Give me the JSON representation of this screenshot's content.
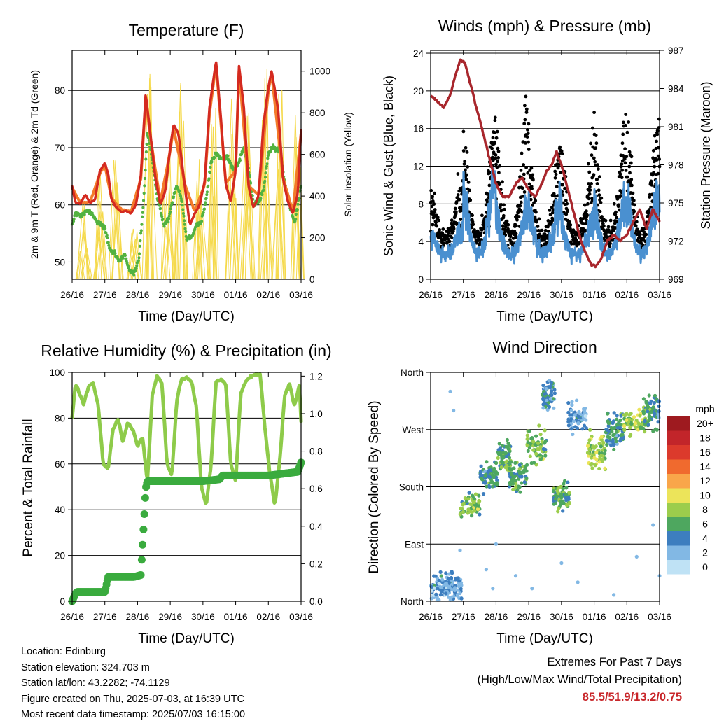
{
  "chart_data": [
    {
      "type": "line",
      "title": "Temperature (F)",
      "xlabel": "Time (Day/UTC)",
      "ylabel": "2m & 9m T (Red, Orange) & 2m Td (Green)",
      "ylabel_right": "Solar Insolation (Yellow)",
      "x_ticks": [
        "26/16",
        "27/16",
        "28/16",
        "29/16",
        "30/16",
        "01/16",
        "02/16",
        "03/16"
      ],
      "ylim": [
        47,
        87
      ],
      "y_ticks": [
        50,
        60,
        70,
        80
      ],
      "ylim_right": [
        0,
        1100
      ],
      "y_ticks_right": [
        0,
        200,
        400,
        600,
        800,
        1000
      ],
      "grid": "horizontal",
      "colors": {
        "t2m": "#d42a20",
        "t9m": "#f37b2a",
        "td2m": "#52b240",
        "solar": "#f5d94a"
      },
      "series": [
        {
          "key": "t2m",
          "x": [
            0,
            0.1,
            0.25,
            0.4,
            0.55,
            0.7,
            0.85,
            1.0,
            1.1,
            1.2,
            1.35,
            1.5,
            1.65,
            1.8,
            1.95,
            2.1,
            2.25,
            2.4,
            2.55,
            2.7,
            2.85,
            3.0,
            3.1,
            3.25,
            3.45,
            3.6,
            3.75,
            3.9,
            4.05,
            4.2,
            4.4,
            4.55,
            4.7,
            4.85,
            5.0,
            5.1,
            5.25,
            5.4,
            5.55,
            5.7,
            5.85,
            6.0,
            6.1,
            6.3,
            6.45,
            6.6,
            6.75,
            6.9,
            7.0
          ],
          "values": [
            63.2,
            60.5,
            60.2,
            61.8,
            60.3,
            61.0,
            66.0,
            67.3,
            65.5,
            61.0,
            59.5,
            58.8,
            59.0,
            58.5,
            60.0,
            65.0,
            79.5,
            72.0,
            64.5,
            60.0,
            62.5,
            70.0,
            74.0,
            72.5,
            63.0,
            56.5,
            58.5,
            60.0,
            64.0,
            77.0,
            85.2,
            75.0,
            63.5,
            60.5,
            66.0,
            84.5,
            77.0,
            63.0,
            59.5,
            61.5,
            74.0,
            80.5,
            83.5,
            76.5,
            64.5,
            60.5,
            58.5,
            62.0,
            73.0
          ]
        },
        {
          "key": "t9m",
          "x": [
            0,
            0.25,
            0.55,
            0.85,
            1.0,
            1.2,
            1.5,
            1.8,
            2.1,
            2.25,
            2.4,
            2.7,
            3.0,
            3.1,
            3.45,
            3.75,
            4.05,
            4.2,
            4.4,
            4.7,
            5.0,
            5.1,
            5.4,
            5.7,
            6.0,
            6.1,
            6.45,
            6.75,
            7.0
          ],
          "values": [
            63.0,
            60.4,
            60.5,
            65.5,
            66.8,
            61.2,
            59.2,
            58.8,
            64.5,
            78.5,
            71.5,
            60.5,
            69.5,
            73.5,
            63.5,
            58.8,
            63.5,
            76.0,
            84.5,
            63.8,
            66.0,
            83.8,
            63.3,
            61.7,
            80.0,
            83.0,
            64.7,
            58.8,
            72.5
          ]
        },
        {
          "key": "td2m",
          "x": [
            0,
            0.1,
            0.25,
            0.45,
            0.6,
            0.75,
            0.9,
            1.0,
            1.15,
            1.3,
            1.45,
            1.6,
            1.75,
            1.9,
            2.05,
            2.2,
            2.3,
            2.45,
            2.6,
            2.8,
            2.95,
            3.05,
            3.2,
            3.35,
            3.5,
            3.65,
            3.8,
            3.95,
            4.1,
            4.25,
            4.4,
            4.55,
            4.75,
            4.95,
            5.1,
            5.25,
            5.4,
            5.55,
            5.7,
            5.85,
            6.0,
            6.15,
            6.35,
            6.5,
            6.65,
            6.8,
            6.9,
            7.0
          ],
          "values": [
            56.5,
            58.5,
            58.0,
            59.0,
            58.5,
            57.0,
            56.5,
            56.0,
            52.0,
            51.5,
            50.0,
            51.5,
            48.5,
            48.0,
            51.0,
            62.0,
            72.5,
            68.0,
            61.5,
            56.5,
            57.5,
            60.5,
            63.5,
            61.0,
            54.0,
            54.5,
            56.5,
            57.0,
            61.0,
            67.5,
            69.0,
            68.0,
            68.5,
            66.0,
            67.5,
            70.0,
            66.0,
            60.0,
            60.5,
            62.5,
            69.0,
            70.0,
            69.5,
            64.0,
            60.0,
            57.0,
            60.0,
            63.5
          ]
        }
      ],
      "solar_peaks": [
        {
          "x": 0.35,
          "y": 380
        },
        {
          "x": 0.9,
          "y": 520
        },
        {
          "x": 1.35,
          "y": 600
        },
        {
          "x": 1.9,
          "y": 280
        },
        {
          "x": 2.35,
          "y": 1040
        },
        {
          "x": 2.9,
          "y": 600
        },
        {
          "x": 3.35,
          "y": 980
        },
        {
          "x": 3.9,
          "y": 640
        },
        {
          "x": 4.35,
          "y": 1000
        },
        {
          "x": 4.9,
          "y": 950
        },
        {
          "x": 5.35,
          "y": 880
        },
        {
          "x": 5.9,
          "y": 1080
        },
        {
          "x": 6.35,
          "y": 1000
        },
        {
          "x": 6.9,
          "y": 860
        }
      ]
    },
    {
      "type": "line",
      "title": "Winds (mph) & Pressure (mb)",
      "xlabel": "Time (Day/UTC)",
      "ylabel": "Sonic Wind & Gust (Blue, Black)",
      "ylabel_right": "Station Pressure (Maroon)",
      "x_ticks": [
        "26/16",
        "27/16",
        "28/16",
        "29/16",
        "30/16",
        "01/16",
        "02/16",
        "03/16"
      ],
      "ylim": [
        0,
        24.3
      ],
      "y_ticks": [
        0,
        4,
        8,
        12,
        16,
        20,
        24
      ],
      "ylim_right": [
        969,
        987
      ],
      "y_ticks_right": [
        969,
        972,
        975,
        978,
        981,
        984,
        987
      ],
      "grid": "horizontal",
      "colors": {
        "wind": "#4a90d0",
        "gust": "#000000",
        "pressure": "#a8262c"
      },
      "pressure": {
        "x": [
          0,
          0.2,
          0.4,
          0.6,
          0.75,
          0.9,
          1.05,
          1.2,
          1.4,
          1.6,
          1.8,
          2.0,
          2.2,
          2.4,
          2.6,
          2.8,
          3.0,
          3.2,
          3.4,
          3.55,
          3.7,
          3.85,
          4.0,
          4.15,
          4.3,
          4.45,
          4.6,
          4.75,
          4.9,
          5.05,
          5.2,
          5.4,
          5.6,
          5.8,
          6.0,
          6.2,
          6.4,
          6.6,
          6.8,
          7.0
        ],
        "values": [
          983.5,
          983.0,
          982.5,
          983.5,
          985.0,
          986.2,
          986.0,
          984.5,
          982.5,
          980.5,
          978.5,
          976.5,
          975.5,
          975.5,
          976.5,
          977.0,
          976.0,
          975.5,
          976.5,
          977.5,
          978.0,
          979.0,
          978.0,
          976.5,
          975.0,
          973.5,
          972.0,
          971.0,
          970.2,
          970.0,
          970.5,
          972.0,
          972.5,
          972.0,
          972.5,
          973.5,
          974.5,
          973.0,
          974.5,
          973.5
        ]
      },
      "wind_daily_peaks": [
        6,
        12,
        9,
        10,
        7,
        10,
        11,
        9
      ],
      "gust_daily_peaks": [
        10,
        17,
        19,
        15,
        14,
        19,
        18,
        14
      ]
    },
    {
      "type": "line",
      "title": "Relative Humidity (%) & Precipitation (in)",
      "xlabel": "Time (Day/UTC)",
      "ylabel": "Percent & Total Rainfall",
      "x_ticks": [
        "26/16",
        "27/16",
        "28/16",
        "29/16",
        "30/16",
        "01/16",
        "02/16",
        "03/16"
      ],
      "ylim": [
        0,
        100
      ],
      "y_ticks": [
        0,
        20,
        40,
        60,
        80,
        100
      ],
      "ylim_right": [
        0,
        1.22
      ],
      "y_ticks_right": [
        "0.0",
        "0.2",
        "0.4",
        "0.6",
        "0.8",
        "1.0",
        "1.2"
      ],
      "grid": "horizontal",
      "colors": {
        "rh": "#8ecb4a",
        "precip": "#3aab3e"
      },
      "rh": {
        "x": [
          0,
          0.1,
          0.2,
          0.35,
          0.5,
          0.65,
          0.8,
          0.95,
          1.1,
          1.25,
          1.4,
          1.55,
          1.7,
          1.85,
          2.0,
          2.15,
          2.3,
          2.45,
          2.6,
          2.75,
          2.9,
          3.05,
          3.2,
          3.35,
          3.5,
          3.65,
          3.8,
          3.95,
          4.1,
          4.25,
          4.4,
          4.55,
          4.7,
          4.85,
          5.0,
          5.15,
          5.3,
          5.45,
          5.6,
          5.75,
          5.9,
          6.05,
          6.2,
          6.35,
          6.5,
          6.65,
          6.8,
          6.95,
          7.0
        ],
        "values": [
          80,
          95,
          92,
          86,
          94,
          95,
          85,
          60,
          58,
          75,
          80,
          70,
          78,
          75,
          68,
          72,
          52,
          90,
          99,
          95,
          60,
          55,
          88,
          97,
          98,
          96,
          85,
          50,
          42,
          60,
          96,
          97,
          95,
          60,
          52,
          90,
          96,
          98,
          99,
          99,
          75,
          55,
          42,
          62,
          90,
          95,
          85,
          95,
          78
        ]
      },
      "precip": {
        "x": [
          0,
          0.1,
          0.15,
          1.0,
          1.1,
          1.5,
          1.9,
          2.1,
          2.2,
          2.25,
          2.3,
          3.0,
          4.0,
          4.5,
          4.6,
          5.0,
          5.5,
          6.0,
          6.9,
          7.0
        ],
        "values": [
          0.0,
          0.04,
          0.05,
          0.05,
          0.13,
          0.13,
          0.13,
          0.14,
          0.44,
          0.6,
          0.64,
          0.64,
          0.64,
          0.65,
          0.67,
          0.67,
          0.67,
          0.67,
          0.69,
          0.74
        ]
      }
    },
    {
      "type": "scatter",
      "title": "Wind Direction",
      "xlabel": "Time (Day/UTC)",
      "ylabel": "Direction (Colored By Speed)",
      "x_ticks": [
        "26/16",
        "27/16",
        "28/16",
        "29/16",
        "30/16",
        "01/16",
        "02/16",
        "03/16"
      ],
      "y_ticks": [
        "North",
        "East",
        "South",
        "West",
        "North"
      ],
      "ylim": [
        0,
        360
      ],
      "grid": "horizontal",
      "colorbar": {
        "title": "mph",
        "labels": [
          "20+",
          "18",
          "16",
          "14",
          "12",
          "10",
          "8",
          "6",
          "4",
          "2",
          "0"
        ],
        "colors": [
          "#9e1a1f",
          "#c2252a",
          "#dc3a2c",
          "#f06a2e",
          "#f9a64a",
          "#ece45a",
          "#9ccd4c",
          "#4ea75f",
          "#3d7ebf",
          "#82b8e4",
          "#bfe2f5"
        ]
      },
      "clusters": [
        {
          "x0": 0.0,
          "x1": 0.5,
          "dir": 20,
          "spread": 30,
          "speed": 3
        },
        {
          "x0": 0.45,
          "x1": 0.95,
          "dir": 25,
          "spread": 35,
          "speed": 3
        },
        {
          "x0": 0.9,
          "x1": 1.5,
          "dir": 150,
          "spread": 30,
          "speed": 7
        },
        {
          "x0": 1.5,
          "x1": 2.05,
          "dir": 195,
          "spread": 30,
          "speed": 5
        },
        {
          "x0": 2.05,
          "x1": 2.45,
          "dir": 225,
          "spread": 35,
          "speed": 6
        },
        {
          "x0": 2.4,
          "x1": 2.95,
          "dir": 200,
          "spread": 35,
          "speed": 6
        },
        {
          "x0": 2.95,
          "x1": 3.55,
          "dir": 245,
          "spread": 40,
          "speed": 7
        },
        {
          "x0": 3.4,
          "x1": 3.8,
          "dir": 325,
          "spread": 30,
          "speed": 4
        },
        {
          "x0": 3.75,
          "x1": 4.25,
          "dir": 165,
          "spread": 30,
          "speed": 6
        },
        {
          "x0": 4.2,
          "x1": 4.8,
          "dir": 290,
          "spread": 35,
          "speed": 3
        },
        {
          "x0": 4.8,
          "x1": 5.35,
          "dir": 235,
          "spread": 40,
          "speed": 8
        },
        {
          "x0": 5.35,
          "x1": 5.9,
          "dir": 270,
          "spread": 40,
          "speed": 5
        },
        {
          "x0": 5.9,
          "x1": 6.6,
          "dir": 280,
          "spread": 30,
          "speed": 8
        },
        {
          "x0": 6.5,
          "x1": 7.0,
          "dir": 300,
          "spread": 40,
          "speed": 5
        }
      ],
      "scattered_points": [
        {
          "x": 0.6,
          "y": 330
        },
        {
          "x": 0.7,
          "y": 300
        },
        {
          "x": 0.9,
          "y": 80
        },
        {
          "x": 1.7,
          "y": 50
        },
        {
          "x": 1.9,
          "y": 20
        },
        {
          "x": 2.0,
          "y": 90
        },
        {
          "x": 2.6,
          "y": 40
        },
        {
          "x": 3.1,
          "y": 20
        },
        {
          "x": 4.0,
          "y": 60
        },
        {
          "x": 4.5,
          "y": 30
        },
        {
          "x": 5.6,
          "y": 10
        },
        {
          "x": 6.3,
          "y": 70
        },
        {
          "x": 6.8,
          "y": 120
        },
        {
          "x": 7.0,
          "y": 40
        }
      ]
    }
  ],
  "footer": {
    "location": "Location: Edinburg",
    "elevation": "Station elevation: 324.703 m",
    "latlon": "Station lat/lon: 43.2282; -74.1129",
    "created": "Figure created on Thu, 2025-07-03, at 16:39 UTC",
    "recent": "Most recent data timestamp: 2025/07/03 16:15:00",
    "extremes_title_1": "Extremes For Past 7 Days",
    "extremes_title_2": "(High/Low/Max Wind/Total Precipitation)",
    "extremes_values": "85.5/51.9/13.2/0.75"
  }
}
